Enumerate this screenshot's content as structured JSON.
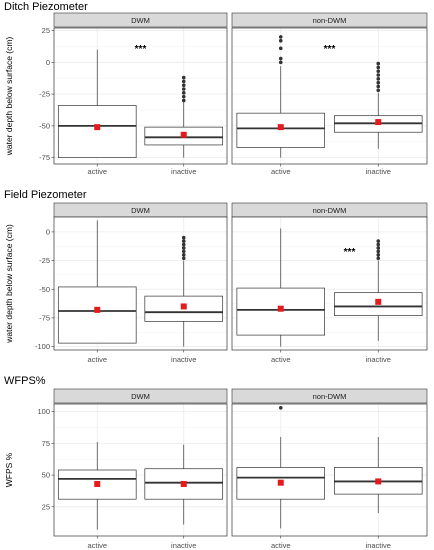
{
  "colors": {
    "strip_bg": "#d9d9d9",
    "panel_border": "#333333",
    "grid_major": "#ebebeb",
    "box_line": "#333333",
    "median_line": "#333333",
    "outlier": "#333333",
    "mean_marker": "#e41a1c"
  },
  "chart_data": [
    {
      "type": "box",
      "section_title": "Ditch Piezometer",
      "ylabel": "water depth below surface (cm)",
      "ylim": [
        -80,
        27
      ],
      "yticks": [
        25,
        0,
        -25,
        -50,
        -75
      ],
      "categories": [
        "active",
        "inactive"
      ],
      "facets": [
        {
          "name": "DWM",
          "annotation": "***",
          "boxes": [
            {
              "category": "active",
              "whisker_low": -75,
              "q1": -75,
              "median": -50,
              "q3": -34,
              "whisker_high": 10,
              "mean": -51,
              "outliers": []
            },
            {
              "category": "inactive",
              "whisker_low": -75,
              "q1": -65,
              "median": -59,
              "q3": -51,
              "whisker_high": -31,
              "mean": -57,
              "outliers": [
                -30,
                -27,
                -24,
                -21,
                -18,
                -15,
                -12
              ]
            }
          ]
        },
        {
          "name": "non-DWM",
          "annotation": "***",
          "boxes": [
            {
              "category": "active",
              "whisker_low": -75,
              "q1": -67,
              "median": -52,
              "q3": -40,
              "whisker_high": -3,
              "mean": -51,
              "outliers": [
                0,
                3,
                11,
                17,
                20
              ]
            },
            {
              "category": "inactive",
              "whisker_low": -68,
              "q1": -55,
              "median": -48,
              "q3": -42,
              "whisker_high": -24,
              "mean": -47,
              "outliers": [
                -22,
                -19,
                -16,
                -13,
                -10,
                -7,
                -4,
                -1
              ]
            }
          ]
        }
      ]
    },
    {
      "type": "box",
      "section_title": "Field Piezometer",
      "ylabel": "water depth below surface (cm)",
      "ylim": [
        -103,
        13
      ],
      "yticks": [
        0,
        -25,
        -50,
        -75,
        -100
      ],
      "categories": [
        "active",
        "inactive"
      ],
      "facets": [
        {
          "name": "DWM",
          "annotation": "",
          "boxes": [
            {
              "category": "active",
              "whisker_low": -97,
              "q1": -97,
              "median": -69,
              "q3": -48,
              "whisker_high": 10,
              "mean": -68,
              "outliers": []
            },
            {
              "category": "inactive",
              "whisker_low": -100,
              "q1": -78,
              "median": -70,
              "q3": -56,
              "whisker_high": -25,
              "mean": -65,
              "outliers": [
                -23,
                -20,
                -17,
                -14,
                -11,
                -8,
                -5
              ]
            }
          ]
        },
        {
          "name": "non-DWM",
          "annotation": "***",
          "boxes": [
            {
              "category": "active",
              "whisker_low": -100,
              "q1": -90,
              "median": -68,
              "q3": -49,
              "whisker_high": 3,
              "mean": -67,
              "outliers": []
            },
            {
              "category": "inactive",
              "whisker_low": -95,
              "q1": -73,
              "median": -65,
              "q3": -53,
              "whisker_high": -25,
              "mean": -61,
              "outliers": [
                -23,
                -20,
                -17,
                -14,
                -11,
                -8
              ]
            }
          ]
        }
      ]
    },
    {
      "type": "box",
      "section_title": "WFPS%",
      "ylabel": "WFPS %",
      "ylim": [
        2,
        106
      ],
      "yticks": [
        100,
        75,
        50,
        25
      ],
      "categories": [
        "active",
        "inactive"
      ],
      "facets": [
        {
          "name": "DWM",
          "annotation": "",
          "boxes": [
            {
              "category": "active",
              "whisker_low": 7,
              "q1": 31,
              "median": 47,
              "q3": 54,
              "whisker_high": 76,
              "mean": 43,
              "outliers": []
            },
            {
              "category": "inactive",
              "whisker_low": 11,
              "q1": 31,
              "median": 44,
              "q3": 55,
              "whisker_high": 74,
              "mean": 43,
              "outliers": []
            }
          ]
        },
        {
          "name": "non-DWM",
          "annotation": "",
          "boxes": [
            {
              "category": "active",
              "whisker_low": 8,
              "q1": 31,
              "median": 48,
              "q3": 56,
              "whisker_high": 80,
              "mean": 44,
              "outliers": [
                103
              ]
            },
            {
              "category": "inactive",
              "whisker_low": 20,
              "q1": 35,
              "median": 45,
              "q3": 56,
              "whisker_high": 80,
              "mean": 45,
              "outliers": []
            }
          ]
        }
      ]
    }
  ]
}
